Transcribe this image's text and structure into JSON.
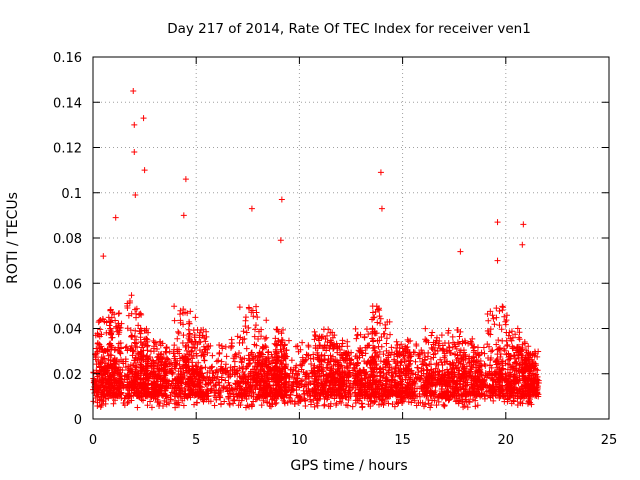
{
  "chart_data": {
    "type": "scatter",
    "title": "Day 217 of 2014, Rate Of TEC Index for receiver ven1",
    "xlabel": "GPS time / hours",
    "ylabel": "ROTI / TECUs",
    "xlim": [
      0,
      25
    ],
    "ylim": [
      0,
      0.16
    ],
    "xticks": [
      0,
      5,
      10,
      15,
      20,
      25
    ],
    "xtick_labels": [
      "0",
      "5",
      "10",
      "15",
      "20",
      "25"
    ],
    "yticks": [
      0,
      0.02,
      0.04,
      0.06,
      0.08,
      0.1,
      0.12,
      0.14,
      0.16
    ],
    "ytick_labels": [
      "0",
      "0.02",
      "0.04",
      "0.06",
      "0.08",
      "0.1",
      "0.12",
      "0.14",
      "0.16"
    ],
    "grid": true,
    "marker": "+",
    "point_color": "#ff0000",
    "x_data_range": [
      0,
      21.6
    ],
    "series": [
      {
        "name": "ven1",
        "description": "Dense cloud of ROTI values (~0.005–0.04 TECU) sampled across 0–21.6 h with spikes",
        "spikes": [
          {
            "x": 0.5,
            "y": 0.072
          },
          {
            "x": 1.1,
            "y": 0.089
          },
          {
            "x": 1.95,
            "y": 0.145
          },
          {
            "x": 2.0,
            "y": 0.13
          },
          {
            "x": 2.0,
            "y": 0.118
          },
          {
            "x": 2.05,
            "y": 0.099
          },
          {
            "x": 2.45,
            "y": 0.133
          },
          {
            "x": 2.5,
            "y": 0.11
          },
          {
            "x": 4.5,
            "y": 0.106
          },
          {
            "x": 4.4,
            "y": 0.09
          },
          {
            "x": 7.7,
            "y": 0.093
          },
          {
            "x": 9.15,
            "y": 0.097
          },
          {
            "x": 9.1,
            "y": 0.079
          },
          {
            "x": 13.95,
            "y": 0.109
          },
          {
            "x": 14.0,
            "y": 0.093
          },
          {
            "x": 17.8,
            "y": 0.074
          },
          {
            "x": 19.6,
            "y": 0.087
          },
          {
            "x": 19.6,
            "y": 0.07
          },
          {
            "x": 20.85,
            "y": 0.086
          },
          {
            "x": 20.8,
            "y": 0.077
          }
        ]
      }
    ]
  }
}
